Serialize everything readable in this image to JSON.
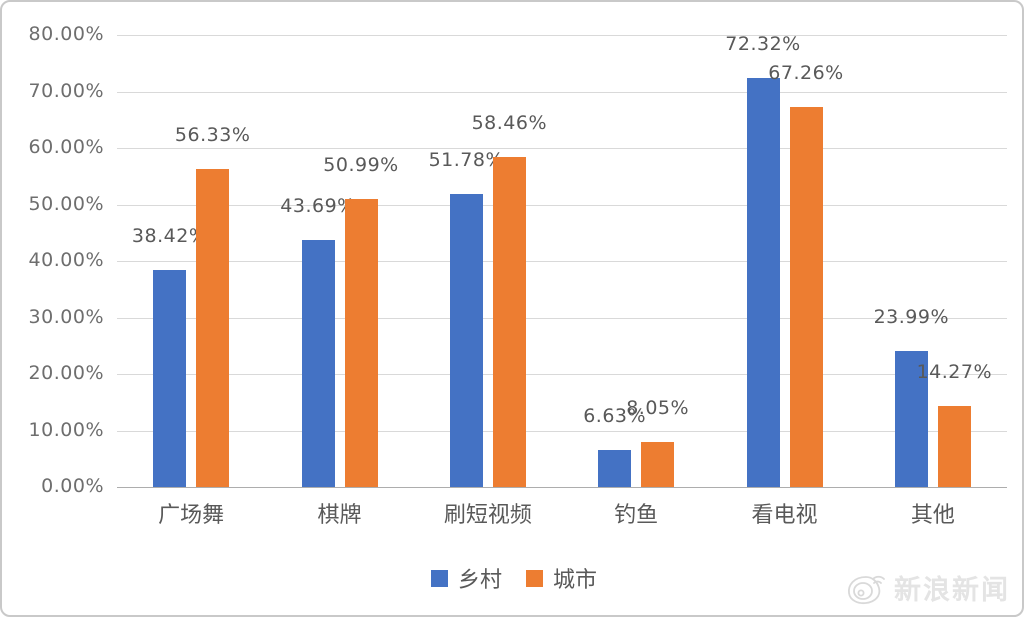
{
  "chart_data": {
    "type": "bar",
    "title": "",
    "categories": [
      "广场舞",
      "棋牌",
      "刷短视频",
      "钓鱼",
      "看电视",
      "其他"
    ],
    "series": [
      {
        "name": "乡村",
        "color": "#4472C4",
        "values": [
          38.42,
          43.69,
          51.78,
          6.63,
          72.32,
          23.99
        ]
      },
      {
        "name": "城市",
        "color": "#ED7D31",
        "values": [
          56.33,
          50.99,
          58.46,
          8.05,
          67.26,
          14.27
        ]
      }
    ],
    "data_labels": [
      [
        "38.42%",
        "43.69%",
        "51.78%",
        "6.63%",
        "72.32%",
        "23.99%"
      ],
      [
        "56.33%",
        "50.99%",
        "58.46%",
        "8.05%",
        "67.26%",
        "14.27%"
      ]
    ],
    "y_ticks": [
      "80.00%",
      "70.00%",
      "60.00%",
      "50.00%",
      "40.00%",
      "30.00%",
      "20.00%",
      "10.00%",
      "0.00%"
    ],
    "ylim": [
      0,
      80
    ],
    "grid": true,
    "legend_position": "bottom"
  },
  "watermark": {
    "text": "新浪新闻",
    "icon": "sina-weibo-eye-icon"
  }
}
